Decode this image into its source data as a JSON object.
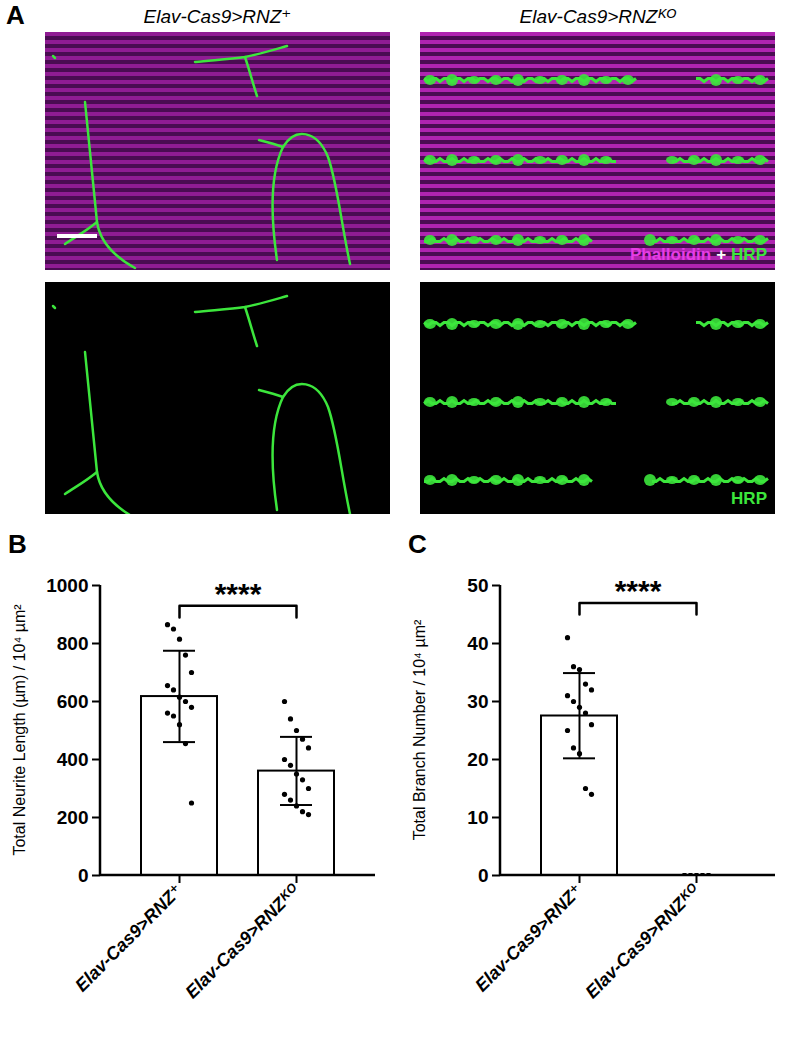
{
  "image_panel": {
    "panel_label": "A",
    "columns": [
      "Elav-Cas9>RNZ⁺",
      "Elav-Cas9>RNZᴷᴼ"
    ],
    "channel_labels": [
      {
        "parts": [
          {
            "text": "Phalloidin",
            "color": "#e63ce6"
          },
          {
            "text": "+",
            "color": "#ffffff"
          },
          {
            "text": "HRP",
            "color": "#3ce63c"
          }
        ]
      },
      {
        "parts": [
          {
            "text": "HRP",
            "color": "#3ce63c"
          }
        ]
      }
    ]
  },
  "chart_data": [
    {
      "type": "bar",
      "panel_label": "B",
      "categories": [
        "Elav-Cas9>RNZ⁺",
        "Elav-Cas9>RNZᴷᴼ"
      ],
      "values": [
        617,
        360
      ],
      "error_low": [
        460,
        243
      ],
      "error_high": [
        775,
        478
      ],
      "points": [
        [
          865,
          850,
          815,
          760,
          700,
          655,
          640,
          615,
          600,
          580,
          560,
          550,
          520,
          455,
          250
        ],
        [
          600,
          540,
          500,
          470,
          440,
          400,
          380,
          350,
          330,
          300,
          280,
          260,
          240,
          220,
          210
        ]
      ],
      "color": "#ffffff",
      "ylabel": "Total Neurite Length (µm) / 10⁴ µm²",
      "ylim": [
        0,
        1000
      ],
      "yticks": [
        0,
        200,
        400,
        600,
        800,
        1000
      ],
      "annotations": [
        {
          "text": "****",
          "y": 930
        }
      ]
    },
    {
      "type": "bar",
      "panel_label": "C",
      "categories": [
        "Elav-Cas9>RNZ⁺",
        "Elav-Cas9>RNZᴷᴼ"
      ],
      "values": [
        27.5,
        0
      ],
      "error_low": [
        20.2,
        0
      ],
      "error_high": [
        34.9,
        0
      ],
      "points": [
        [
          41,
          36,
          35.5,
          33,
          32,
          31,
          30,
          29,
          28,
          26,
          25,
          22,
          21,
          15,
          14
        ],
        [
          0,
          0,
          0,
          0,
          0,
          0,
          0,
          0,
          0,
          0,
          0,
          0,
          0,
          0,
          0
        ]
      ],
      "color": "#ffffff",
      "ylabel": "Total Branch Number / 10⁴ µm²",
      "ylim": [
        0,
        50
      ],
      "yticks": [
        0,
        10,
        20,
        30,
        40,
        50
      ],
      "annotations": [
        {
          "text": "****",
          "y": 47
        }
      ]
    }
  ]
}
